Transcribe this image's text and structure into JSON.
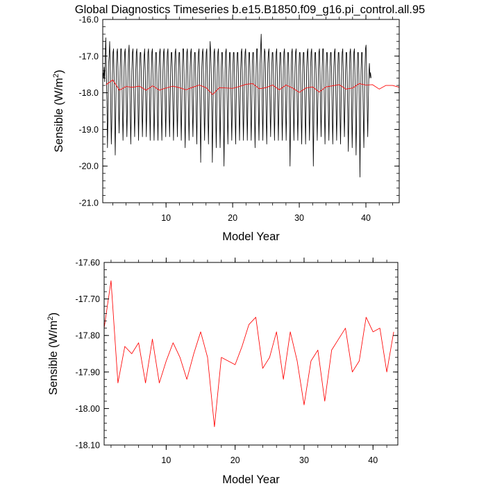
{
  "title": "Global Diagnostics Timeseries b.e15.B1850.f09_g16.pi_control.all.95",
  "chart_data": [
    {
      "type": "line",
      "xlabel": "Model Year",
      "ylabel_main": "Sensible (W/m",
      "ylabel_sup": "2",
      "ylabel_tail": ")",
      "xlim": [
        0.5,
        45.0
      ],
      "ylim": [
        -21.0,
        -16.0
      ],
      "xticks": [
        10,
        20,
        30,
        40
      ],
      "yticks": [
        -16.0,
        -17.0,
        -18.0,
        -19.0,
        -20.0,
        -21.0
      ],
      "ytick_labels": [
        "-16.0",
        "-17.0",
        "-18.0",
        "-19.0",
        "-20.0",
        "-21.0"
      ],
      "grid": false,
      "series": [
        {
          "color": "#000000",
          "x_start": 0.54,
          "x_step": 0.0833,
          "values": [
            -17.45,
            -17.6,
            -17.3,
            -17.7,
            -17.0,
            -16.5,
            -17.4,
            -18.2,
            -19.5,
            -18.6,
            -17.2,
            -17.0,
            -16.6,
            -17.3,
            -18.5,
            -19.4,
            -18.7,
            -17.5,
            -16.9,
            -16.8,
            -17.6,
            -18.6,
            -19.7,
            -18.5,
            -17.3,
            -16.9,
            -16.8,
            -17.4,
            -18.4,
            -19.1,
            -18.3,
            -17.3,
            -16.8,
            -16.8,
            -17.5,
            -18.5,
            -19.3,
            -18.5,
            -17.3,
            -16.9,
            -16.8,
            -17.4,
            -18.4,
            -19.2,
            -18.4,
            -17.4,
            -16.9,
            -16.7,
            -17.4,
            -18.5,
            -19.4,
            -18.6,
            -17.4,
            -16.9,
            -16.8,
            -17.5,
            -18.5,
            -19.2,
            -18.4,
            -17.4,
            -16.9,
            -16.8,
            -17.5,
            -18.4,
            -19.3,
            -18.4,
            -17.3,
            -16.9,
            -16.9,
            -17.5,
            -18.4,
            -19.2,
            -18.4,
            -17.4,
            -17.0,
            -16.8,
            -17.4,
            -18.3,
            -19.2,
            -18.4,
            -17.4,
            -16.9,
            -16.8,
            -17.5,
            -18.4,
            -19.3,
            -18.3,
            -17.4,
            -16.9,
            -16.8,
            -17.5,
            -18.5,
            -19.3,
            -18.5,
            -17.3,
            -16.9,
            -16.9,
            -17.5,
            -18.6,
            -19.3,
            -18.4,
            -17.3,
            -16.9,
            -16.8,
            -17.5,
            -18.5,
            -19.3,
            -18.4,
            -17.4,
            -16.9,
            -16.8,
            -17.4,
            -18.4,
            -19.2,
            -18.3,
            -17.3,
            -16.9,
            -16.8,
            -17.5,
            -18.5,
            -19.2,
            -18.3,
            -17.3,
            -16.9,
            -16.9,
            -17.5,
            -18.5,
            -19.3,
            -18.4,
            -17.3,
            -16.9,
            -16.8,
            -17.5,
            -18.4,
            -19.2,
            -18.3,
            -17.3,
            -16.9,
            -16.9,
            -17.6,
            -18.5,
            -19.3,
            -18.4,
            -17.3,
            -16.8,
            -16.8,
            -17.5,
            -18.6,
            -19.5,
            -18.5,
            -17.4,
            -16.9,
            -16.8,
            -17.5,
            -18.5,
            -19.3,
            -18.4,
            -17.3,
            -16.9,
            -16.8,
            -17.5,
            -18.5,
            -19.2,
            -18.3,
            -17.3,
            -16.9,
            -16.9,
            -17.6,
            -18.6,
            -19.4,
            -18.4,
            -17.3,
            -16.9,
            -16.8,
            -17.5,
            -18.6,
            -19.9,
            -18.6,
            -17.3,
            -16.9,
            -16.8,
            -17.5,
            -18.5,
            -19.3,
            -18.4,
            -17.4,
            -16.9,
            -16.8,
            -17.5,
            -18.6,
            -19.4,
            -18.4,
            -17.2,
            -16.6,
            -16.9,
            -17.5,
            -18.5,
            -19.9,
            -18.6,
            -17.4,
            -16.9,
            -16.8,
            -17.5,
            -18.6,
            -19.5,
            -18.5,
            -17.3,
            -16.9,
            -16.8,
            -17.6,
            -18.6,
            -19.5,
            -18.5,
            -17.3,
            -16.9,
            -16.9,
            -17.6,
            -18.7,
            -20.0,
            -18.7,
            -17.4,
            -16.9,
            -16.8,
            -17.5,
            -18.5,
            -19.4,
            -18.5,
            -17.4,
            -16.9,
            -16.9,
            -17.5,
            -18.5,
            -19.3,
            -18.4,
            -17.3,
            -16.9,
            -16.9,
            -17.6,
            -18.6,
            -19.4,
            -18.4,
            -17.3,
            -16.9,
            -16.9,
            -17.5,
            -18.5,
            -19.3,
            -18.4,
            -17.4,
            -16.9,
            -16.8,
            -17.5,
            -18.5,
            -19.3,
            -18.4,
            -17.3,
            -16.9,
            -16.8,
            -17.5,
            -18.4,
            -19.3,
            -18.4,
            -17.3,
            -16.9,
            -16.9,
            -17.6,
            -18.5,
            -19.3,
            -18.4,
            -17.2,
            -16.9,
            -16.9,
            -17.6,
            -18.6,
            -19.5,
            -18.4,
            -17.3,
            -16.8,
            -16.8,
            -17.5,
            -18.5,
            -19.3,
            -18.3,
            -17.2,
            -16.8,
            -16.4,
            -17.2,
            -18.5,
            -19.3,
            -18.3,
            -17.2,
            -16.8,
            -16.9,
            -17.6,
            -18.6,
            -19.4,
            -18.4,
            -17.2,
            -16.9,
            -16.8,
            -17.5,
            -18.5,
            -19.2,
            -18.3,
            -17.3,
            -16.9,
            -16.9,
            -17.5,
            -18.5,
            -19.3,
            -18.4,
            -17.3,
            -16.9,
            -16.8,
            -17.5,
            -18.5,
            -19.3,
            -18.3,
            -17.3,
            -16.9,
            -16.9,
            -17.5,
            -18.5,
            -19.3,
            -18.4,
            -17.3,
            -16.9,
            -16.8,
            -17.5,
            -18.4,
            -19.3,
            -18.4,
            -17.3,
            -16.9,
            -16.9,
            -17.6,
            -18.6,
            -20.0,
            -18.7,
            -17.4,
            -16.9,
            -16.8,
            -17.5,
            -18.4,
            -19.3,
            -18.4,
            -17.3,
            -16.9,
            -16.8,
            -17.5,
            -18.5,
            -19.3,
            -18.4,
            -17.3,
            -16.9,
            -16.9,
            -17.5,
            -18.6,
            -19.4,
            -18.4,
            -17.3,
            -16.9,
            -16.9,
            -17.6,
            -18.5,
            -19.4,
            -18.4,
            -17.3,
            -16.9,
            -16.8,
            -17.4,
            -18.4,
            -19.3,
            -18.4,
            -17.3,
            -16.9,
            -16.8,
            -17.6,
            -18.6,
            -20.0,
            -18.7,
            -17.4,
            -16.9,
            -16.9,
            -17.5,
            -18.4,
            -19.3,
            -18.4,
            -17.4,
            -16.9,
            -16.8,
            -17.5,
            -18.5,
            -19.2,
            -18.3,
            -17.3,
            -16.8,
            -16.8,
            -17.5,
            -18.5,
            -19.4,
            -18.4,
            -17.3,
            -16.9,
            -16.9,
            -17.5,
            -18.5,
            -19.3,
            -18.4,
            -17.3,
            -16.9,
            -16.9,
            -17.5,
            -18.6,
            -19.4,
            -18.4,
            -17.3,
            -16.9,
            -16.8,
            -17.5,
            -18.5,
            -19.3,
            -18.4,
            -17.3,
            -16.9,
            -16.9,
            -17.6,
            -18.6,
            -19.4,
            -18.4,
            -17.3,
            -16.9,
            -16.8,
            -17.5,
            -18.4,
            -19.2,
            -18.4,
            -17.4,
            -16.9,
            -16.9,
            -17.6,
            -18.6,
            -19.6,
            -18.6,
            -17.4,
            -16.9,
            -16.8,
            -17.4,
            -18.5,
            -19.5,
            -18.5,
            -17.4,
            -16.9,
            -16.8,
            -17.5,
            -18.6,
            -19.7,
            -18.6,
            -17.4,
            -16.9,
            -16.9,
            -17.5,
            -18.6,
            -20.3,
            -18.7,
            -17.4,
            -16.9,
            -16.9,
            -17.6,
            -18.6,
            -19.5,
            -18.5,
            -17.3,
            -16.8,
            -16.7,
            -17.4,
            -18.4,
            -19.2,
            -18.3,
            -17.5,
            -17.2,
            -17.6,
            -17.45,
            -17.6
          ]
        },
        {
          "color": "#ff0000",
          "x_start": 1.0,
          "x_step": 1.0,
          "values": [
            -17.78,
            -17.65,
            -17.93,
            -17.83,
            -17.85,
            -17.82,
            -17.93,
            -17.81,
            -17.93,
            -17.87,
            -17.82,
            -17.86,
            -17.92,
            -17.85,
            -17.79,
            -17.86,
            -18.05,
            -17.86,
            -17.87,
            -17.88,
            -17.83,
            -17.77,
            -17.75,
            -17.89,
            -17.86,
            -17.79,
            -17.92,
            -17.79,
            -17.87,
            -17.99,
            -17.87,
            -17.84,
            -17.98,
            -17.84,
            -17.81,
            -17.78,
            -17.9,
            -17.87,
            -17.75,
            -17.79,
            -17.78,
            -17.9,
            -17.8,
            -17.8,
            -17.85
          ]
        }
      ]
    },
    {
      "type": "line",
      "xlabel": "Model Year",
      "ylabel_main": "Sensible (W/m",
      "ylabel_sup": "2",
      "ylabel_tail": ")",
      "xlim": [
        1.0,
        43.6
      ],
      "ylim": [
        -18.1,
        -17.6
      ],
      "xticks": [
        10,
        20,
        30,
        40
      ],
      "yticks": [
        -17.6,
        -17.7,
        -17.8,
        -17.9,
        -18.0,
        -18.1
      ],
      "ytick_labels": [
        "-17.60",
        "-17.70",
        "-17.80",
        "-17.90",
        "-18.00",
        "-18.10"
      ],
      "grid": false,
      "series": [
        {
          "color": "#ff0000",
          "x_start": 1.0,
          "x_step": 1.0,
          "values": [
            -17.78,
            -17.65,
            -17.93,
            -17.83,
            -17.85,
            -17.82,
            -17.93,
            -17.81,
            -17.93,
            -17.87,
            -17.82,
            -17.86,
            -17.92,
            -17.85,
            -17.79,
            -17.86,
            -18.05,
            -17.86,
            -17.87,
            -17.88,
            -17.83,
            -17.77,
            -17.75,
            -17.89,
            -17.86,
            -17.79,
            -17.92,
            -17.79,
            -17.87,
            -17.99,
            -17.87,
            -17.84,
            -17.98,
            -17.84,
            -17.81,
            -17.78,
            -17.9,
            -17.87,
            -17.75,
            -17.79,
            -17.78,
            -17.9,
            -17.79
          ]
        }
      ]
    }
  ]
}
